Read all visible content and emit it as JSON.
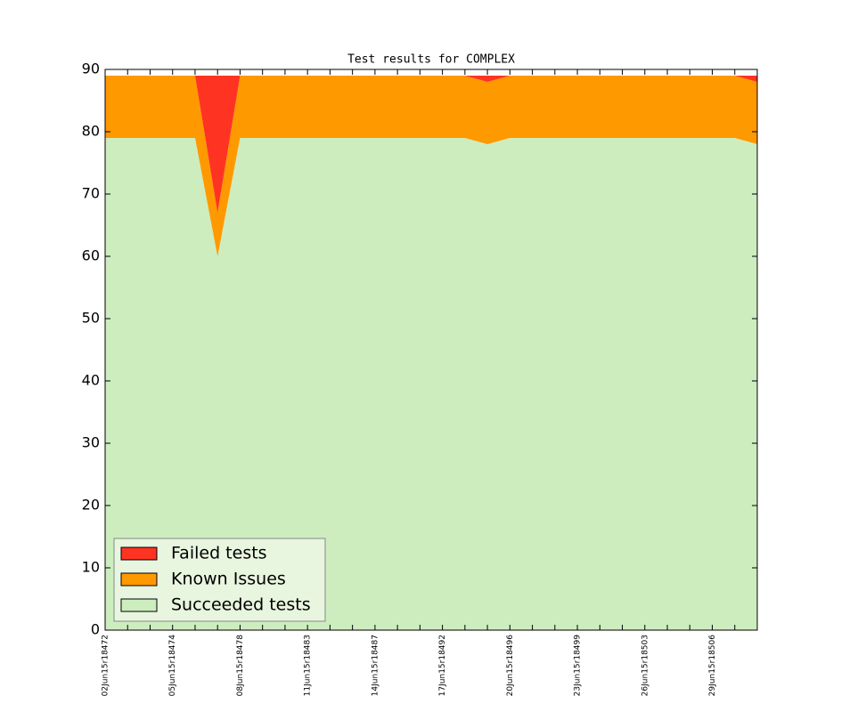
{
  "chart_data": {
    "type": "stacked-area",
    "title": "Test results for COMPLEX",
    "categories": [
      "02Jun15r18472",
      null,
      null,
      "05Jun15r18474",
      null,
      null,
      "08Jun15r18478",
      null,
      null,
      "11Jun15r18483",
      null,
      null,
      "14Jun15r18487",
      null,
      null,
      "17Jun15r18492",
      null,
      null,
      "20Jun15r18496",
      null,
      null,
      "23Jun15r18499",
      null,
      null,
      "26Jun15r18503",
      null,
      null,
      "29Jun15r18506",
      null,
      null
    ],
    "series": [
      {
        "name": "Failed tests",
        "color": "#ff3322",
        "values": [
          0,
          0,
          0,
          0,
          0,
          22,
          0,
          0,
          0,
          0,
          0,
          0,
          0,
          0,
          0,
          0,
          0,
          1,
          0,
          0,
          0,
          0,
          0,
          0,
          0,
          0,
          0,
          0,
          0,
          1
        ]
      },
      {
        "name": "Known Issues",
        "color": "#ff9900",
        "values": [
          10,
          10,
          10,
          10,
          10,
          7,
          10,
          10,
          10,
          10,
          10,
          10,
          10,
          10,
          10,
          10,
          10,
          10,
          10,
          10,
          10,
          10,
          10,
          10,
          10,
          10,
          10,
          10,
          10,
          10
        ]
      },
      {
        "name": "Succeeded tests",
        "color": "#cdedbf",
        "values": [
          79,
          79,
          79,
          79,
          79,
          60,
          79,
          79,
          79,
          79,
          79,
          79,
          79,
          79,
          79,
          79,
          79,
          78,
          79,
          79,
          79,
          79,
          79,
          79,
          79,
          79,
          79,
          79,
          79,
          78
        ]
      }
    ],
    "ylim": [
      0,
      90
    ],
    "yticks": [
      0,
      10,
      20,
      30,
      40,
      50,
      60,
      70,
      80,
      90
    ],
    "legend": "lower left"
  }
}
